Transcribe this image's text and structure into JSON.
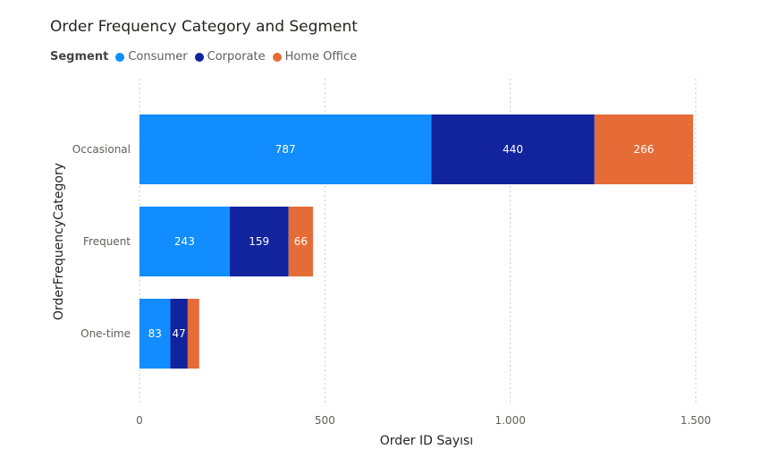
{
  "chart_data": {
    "type": "bar",
    "orientation": "horizontal",
    "stacked": true,
    "title": "Order Frequency Category and Segment",
    "legend_title": "Segment",
    "legend_position": "top-left",
    "xlabel": "Order ID Sayısı",
    "ylabel": "OrderFrequencyCategory",
    "xlim": [
      0,
      1500
    ],
    "xticks": [
      0,
      500,
      1000,
      1500
    ],
    "xtick_labels": [
      "0",
      "500",
      "1.000",
      "1.500"
    ],
    "grid": true,
    "categories": [
      "Occasional",
      "Frequent",
      "One-time"
    ],
    "series": [
      {
        "name": "Consumer",
        "color": "#118DFF",
        "values": [
          787,
          243,
          83
        ],
        "labels": [
          "787",
          "243",
          "83"
        ]
      },
      {
        "name": "Corporate",
        "color": "#12239E",
        "values": [
          440,
          159,
          47
        ],
        "labels": [
          "440",
          "159",
          "47"
        ]
      },
      {
        "name": "Home Office",
        "color": "#E66C37",
        "values": [
          266,
          66,
          31
        ],
        "labels": [
          "266",
          "66",
          ""
        ]
      }
    ]
  }
}
